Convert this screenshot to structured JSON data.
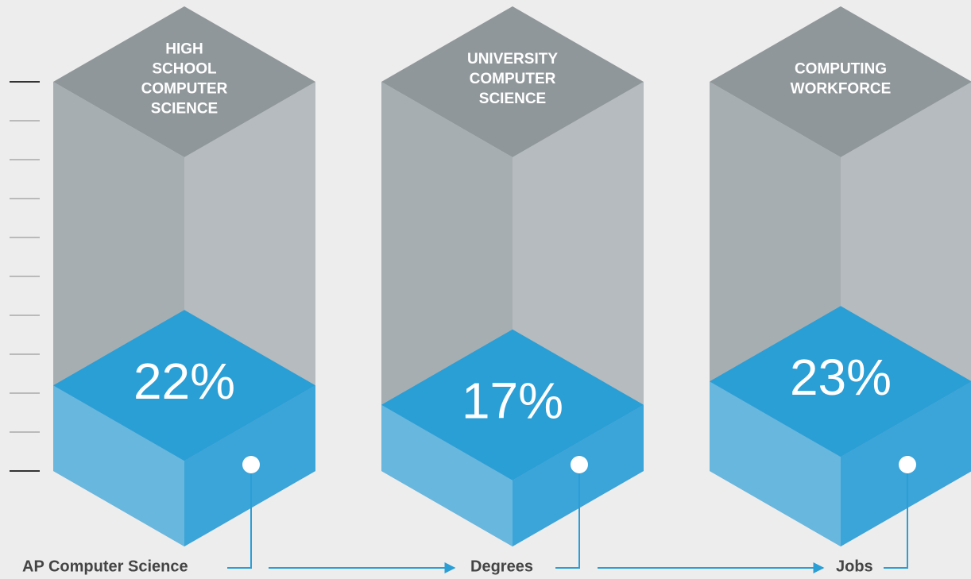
{
  "chart_data": {
    "type": "isometric-column",
    "categories": [
      [
        "HIGH",
        "SCHOOL",
        "COMPUTER",
        "SCIENCE"
      ],
      [
        "UNIVERSITY",
        "COMPUTER",
        "SCIENCE"
      ],
      [
        "COMPUTING",
        "WORKFORCE"
      ]
    ],
    "values": [
      22,
      17,
      23
    ],
    "value_labels": [
      "22%",
      "17%",
      "23%"
    ],
    "stages": [
      "AP Computer Science",
      "Degrees",
      "Jobs"
    ],
    "ylim": [
      0,
      100
    ],
    "yticks": [
      0,
      10,
      20,
      30,
      40,
      50,
      60,
      70,
      80,
      90,
      100
    ],
    "color": "#2a9fd6"
  }
}
